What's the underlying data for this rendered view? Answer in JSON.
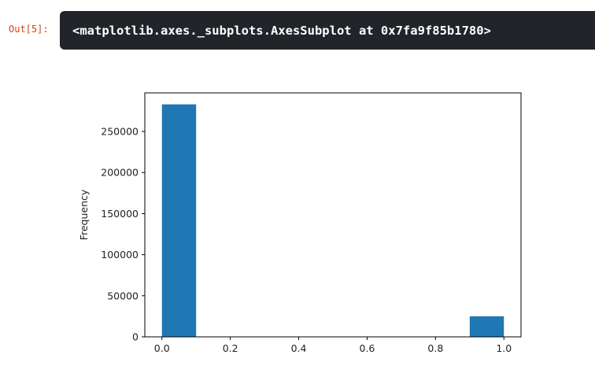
{
  "cell": {
    "prompt": "Out[5]:",
    "repr_text": "<matplotlib.axes._subplots.AxesSubplot at 0x7fa9f85b1780>"
  },
  "chart_data": {
    "type": "bar",
    "kind": "histogram",
    "title": "",
    "xlabel": "",
    "ylabel": "Frequency",
    "bars": [
      {
        "x_start": 0.0,
        "x_end": 0.1,
        "value": 283000
      },
      {
        "x_start": 0.1,
        "x_end": 0.2,
        "value": 0
      },
      {
        "x_start": 0.2,
        "x_end": 0.3,
        "value": 0
      },
      {
        "x_start": 0.3,
        "x_end": 0.4,
        "value": 0
      },
      {
        "x_start": 0.4,
        "x_end": 0.5,
        "value": 0
      },
      {
        "x_start": 0.5,
        "x_end": 0.6,
        "value": 0
      },
      {
        "x_start": 0.6,
        "x_end": 0.7,
        "value": 0
      },
      {
        "x_start": 0.7,
        "x_end": 0.8,
        "value": 0
      },
      {
        "x_start": 0.8,
        "x_end": 0.9,
        "value": 0
      },
      {
        "x_start": 0.9,
        "x_end": 1.0,
        "value": 25000
      }
    ],
    "xticks": [
      "0.0",
      "0.2",
      "0.4",
      "0.6",
      "0.8",
      "1.0"
    ],
    "xtick_values": [
      0.0,
      0.2,
      0.4,
      0.6,
      0.8,
      1.0
    ],
    "yticks": [
      "0",
      "50000",
      "100000",
      "150000",
      "200000",
      "250000"
    ],
    "ytick_values": [
      0,
      50000,
      100000,
      150000,
      200000,
      250000
    ],
    "xlim": [
      -0.05,
      1.05
    ],
    "ylim": [
      0,
      297000
    ],
    "grid": false,
    "bar_color": "#1f77b4"
  }
}
